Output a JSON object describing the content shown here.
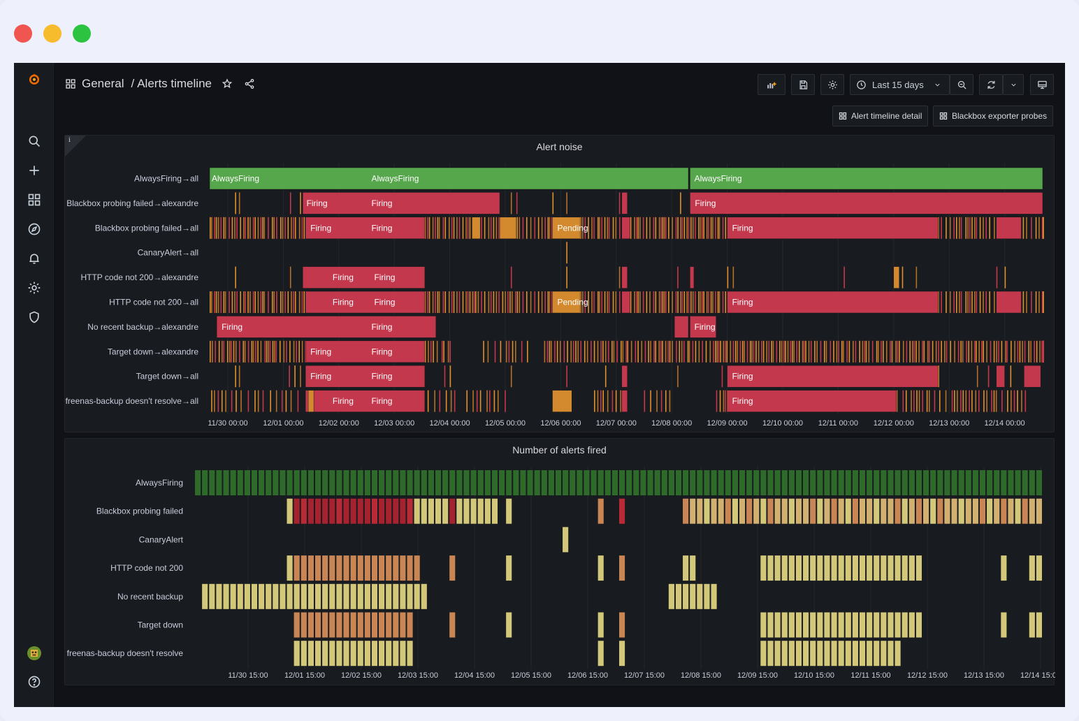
{
  "breadcrumb": {
    "folder": "General",
    "separator": "/",
    "title": "Alerts timeline"
  },
  "time_picker": {
    "label": "Last 15 days"
  },
  "dashboard_links": [
    {
      "label": "Alert timeline detail"
    },
    {
      "label": "Blackbox exporter probes"
    }
  ],
  "sidebar": {
    "items": [
      {
        "icon": "search-icon"
      },
      {
        "icon": "plus-icon"
      },
      {
        "icon": "dashboards-icon"
      },
      {
        "icon": "explore-icon"
      },
      {
        "icon": "bell-icon"
      },
      {
        "icon": "gear-icon"
      },
      {
        "icon": "shield-icon"
      }
    ],
    "bottom": [
      {
        "icon": "avatar"
      },
      {
        "icon": "help-icon"
      }
    ]
  },
  "colors": {
    "firing": "#c4384d",
    "pending": "#d38a2e",
    "always": "#56a64b",
    "background": "#111217",
    "panel": "#181b1f"
  },
  "chart_data": [
    {
      "type": "state-timeline",
      "title": "Alert noise",
      "x_ticks": [
        "11/30 00:00",
        "12/01 00:00",
        "12/02 00:00",
        "12/03 00:00",
        "12/04 00:00",
        "12/05 00:00",
        "12/06 00:00",
        "12/07 00:00",
        "12/08 00:00",
        "12/09 00:00",
        "12/10 00:00",
        "12/11 00:00",
        "12/12 00:00",
        "12/13 00:00",
        "12/14 00:00"
      ],
      "rows": [
        {
          "name": "AlwaysFiring→all",
          "segments": [
            [
              -0.35,
              8.3,
              "AlwaysFiring"
            ],
            [
              8.33,
              15.4,
              "AlwaysFiring"
            ]
          ],
          "segment_labels": [
            [
              -0.35,
              "AlwaysFiring"
            ],
            [
              2.55,
              "AlwaysFiring"
            ],
            [
              8.37,
              "AlwaysFiring"
            ]
          ],
          "ticks": []
        },
        {
          "name": "Blackbox probing failed→alexandre",
          "segments": [
            [
              1.35,
              4.9,
              "Firing"
            ],
            [
              8.33,
              15.4,
              "Firing"
            ],
            [
              7.1,
              7.2,
              "Firing"
            ]
          ],
          "segment_labels": [
            [
              1.38,
              "Firing"
            ],
            [
              2.55,
              "Firing"
            ],
            [
              8.38,
              "Firing"
            ]
          ],
          "ticks": [
            [
              0.13,
              "p"
            ],
            [
              0.2,
              "p"
            ],
            [
              1.12,
              "p"
            ],
            [
              1.3,
              "p"
            ],
            [
              5.1,
              "p"
            ],
            [
              5.2,
              "p"
            ],
            [
              5.85,
              "p"
            ],
            [
              6.1,
              "p"
            ],
            [
              7.05,
              "p"
            ],
            [
              8.15,
              "p"
            ]
          ]
        },
        {
          "name": "Blackbox probing failed→all",
          "segments": [
            [
              1.4,
              3.55,
              "Firing"
            ],
            [
              4.4,
              4.55,
              "Pending"
            ],
            [
              4.9,
              5.2,
              "Pending"
            ],
            [
              5.85,
              6.35,
              "Pending"
            ],
            [
              7.1,
              7.25,
              "Firing"
            ],
            [
              9.0,
              12.8,
              "Firing"
            ],
            [
              13.85,
              14.3,
              "Firing"
            ]
          ],
          "segment_labels": [
            [
              1.45,
              "Firing"
            ],
            [
              2.55,
              "Firing"
            ],
            [
              5.9,
              "Pending"
            ],
            [
              9.05,
              "Firing"
            ]
          ],
          "ticks": "dense-a"
        },
        {
          "name": "CanaryAlert→all",
          "segments": [],
          "segment_labels": [],
          "ticks": [
            [
              6.1,
              "p"
            ]
          ]
        },
        {
          "name": "HTTP code not 200→alexandre",
          "segments": [
            [
              1.35,
              3.55,
              "Firing"
            ],
            [
              7.1,
              7.2,
              "Firing"
            ],
            [
              8.33,
              8.4,
              "Firing"
            ],
            [
              12.0,
              12.1,
              "Pending"
            ]
          ],
          "segment_labels": [
            [
              1.85,
              "Firing"
            ],
            [
              2.6,
              "Firing"
            ]
          ],
          "ticks": [
            [
              0.13,
              "p"
            ],
            [
              1.12,
              "p"
            ],
            [
              5.1,
              "p"
            ],
            [
              6.1,
              "p"
            ],
            [
              7.05,
              "p"
            ],
            [
              8.1,
              "p"
            ],
            [
              9.0,
              "p"
            ],
            [
              9.1,
              "p"
            ],
            [
              11.1,
              "p"
            ],
            [
              12.15,
              "p"
            ],
            [
              12.4,
              "p"
            ],
            [
              13.85,
              "p"
            ],
            [
              14.0,
              "p"
            ]
          ]
        },
        {
          "name": "HTTP code not 200→all",
          "segments": [
            [
              1.4,
              3.55,
              "Firing"
            ],
            [
              5.85,
              6.35,
              "Pending"
            ],
            [
              7.1,
              7.25,
              "Firing"
            ],
            [
              9.0,
              12.8,
              "Firing"
            ],
            [
              13.85,
              14.3,
              "Firing"
            ]
          ],
          "segment_labels": [
            [
              1.85,
              "Firing"
            ],
            [
              2.6,
              "Firing"
            ]
          ],
          "segment_labels_extra": [
            [
              5.9,
              "Pending"
            ],
            [
              9.05,
              "Firing"
            ]
          ],
          "ticks": "dense-a"
        },
        {
          "name": "No recent backup→alexandre",
          "segments": [
            [
              -0.2,
              3.75,
              "Firing"
            ],
            [
              8.05,
              8.3,
              "Firing"
            ],
            [
              8.33,
              8.8,
              "Firing"
            ]
          ],
          "segment_labels": [
            [
              -0.15,
              "Firing"
            ],
            [
              2.55,
              "Firing"
            ],
            [
              8.37,
              "Firing"
            ]
          ],
          "ticks": []
        },
        {
          "name": "Target down→alexandre",
          "segments": [
            [
              1.4,
              3.55,
              "Firing"
            ]
          ],
          "segment_labels": [
            [
              1.45,
              "Firing"
            ],
            [
              2.55,
              "Firing"
            ]
          ],
          "ticks": "dense-b"
        },
        {
          "name": "Target down→all",
          "segments": [
            [
              1.4,
              3.55,
              "Firing"
            ],
            [
              7.1,
              7.2,
              "Firing"
            ],
            [
              9.0,
              12.8,
              "Firing"
            ],
            [
              14.35,
              14.65,
              "Firing"
            ],
            [
              13.85,
              14.0,
              "Firing"
            ]
          ],
          "segment_labels": [
            [
              1.45,
              "Firing"
            ],
            [
              2.55,
              "Firing"
            ],
            [
              9.05,
              "Firing"
            ]
          ],
          "ticks": [
            [
              0.13,
              "p"
            ],
            [
              0.2,
              "p"
            ],
            [
              1.1,
              "p"
            ],
            [
              1.2,
              "p"
            ],
            [
              1.3,
              "p"
            ],
            [
              3.9,
              "p"
            ],
            [
              4.0,
              "p"
            ],
            [
              5.1,
              "p"
            ],
            [
              6.1,
              "p"
            ],
            [
              6.8,
              "p"
            ],
            [
              8.1,
              "p"
            ],
            [
              8.9,
              "p"
            ],
            [
              12.8,
              "p"
            ],
            [
              13.5,
              "p"
            ],
            [
              13.7,
              "p"
            ],
            [
              14.1,
              "p"
            ]
          ]
        },
        {
          "name": "freenas-backup doesn't resolve→all",
          "segments": [
            [
              1.4,
              3.55,
              "Firing"
            ],
            [
              1.45,
              1.55,
              "Pending"
            ],
            [
              5.85,
              6.2,
              "Pending"
            ],
            [
              7.1,
              7.2,
              "Firing"
            ],
            [
              9.0,
              12.05,
              "Firing"
            ]
          ],
          "segment_labels": [
            [
              1.85,
              "Firing"
            ],
            [
              2.55,
              "Firing"
            ],
            [
              9.05,
              "Firing"
            ]
          ],
          "ticks": "dense-c"
        }
      ]
    },
    {
      "type": "heatmap",
      "title": "Number of alerts fired",
      "x_ticks": [
        "11/30 15:00",
        "12/01 15:00",
        "12/02 15:00",
        "12/03 15:00",
        "12/04 15:00",
        "12/05 15:00",
        "12/06 15:00",
        "12/07 15:00",
        "12/08 15:00",
        "12/09 15:00",
        "12/10 15:00",
        "12/11 15:00",
        "12/12 15:00",
        "12/13 15:00",
        "12/14 15:00"
      ],
      "rows": [
        {
          "name": "AlwaysFiring",
          "cells": [
            [
              0,
              120,
              "g"
            ]
          ]
        },
        {
          "name": "Blackbox probing failed",
          "cells": [
            [
              13,
              14,
              "y"
            ],
            [
              14,
              31,
              "r"
            ],
            [
              31,
              36,
              "y"
            ],
            [
              36,
              37,
              "r"
            ],
            [
              37,
              43,
              "y"
            ],
            [
              44,
              45,
              "y"
            ],
            [
              57,
              58,
              "o"
            ],
            [
              60,
              61,
              "r"
            ],
            [
              69,
              120,
              "m"
            ]
          ]
        },
        {
          "name": "CanaryAlert",
          "cells": [
            [
              52,
              53,
              "y"
            ]
          ]
        },
        {
          "name": "HTTP code not 200",
          "cells": [
            [
              13,
              14,
              "y"
            ],
            [
              14,
              32,
              "o"
            ],
            [
              36,
              37,
              "o"
            ],
            [
              44,
              45,
              "y"
            ],
            [
              57,
              58,
              "y"
            ],
            [
              60,
              61,
              "o"
            ],
            [
              69,
              71,
              "y"
            ],
            [
              80,
              103,
              "y"
            ],
            [
              114,
              115,
              "y"
            ],
            [
              118,
              120,
              "y"
            ]
          ]
        },
        {
          "name": "No recent backup",
          "cells": [
            [
              1,
              33,
              "y"
            ],
            [
              67,
              74,
              "y"
            ]
          ]
        },
        {
          "name": "Target down",
          "cells": [
            [
              14,
              31,
              "o"
            ],
            [
              36,
              37,
              "o"
            ],
            [
              44,
              45,
              "y"
            ],
            [
              57,
              58,
              "y"
            ],
            [
              60,
              61,
              "o"
            ],
            [
              80,
              103,
              "y"
            ],
            [
              114,
              115,
              "y"
            ],
            [
              118,
              120,
              "y"
            ]
          ]
        },
        {
          "name": "freenas-backup doesn't resolve",
          "cells": [
            [
              14,
              31,
              "y"
            ],
            [
              57,
              58,
              "y"
            ],
            [
              60,
              61,
              "y"
            ],
            [
              80,
              100,
              "y"
            ]
          ]
        }
      ]
    }
  ]
}
